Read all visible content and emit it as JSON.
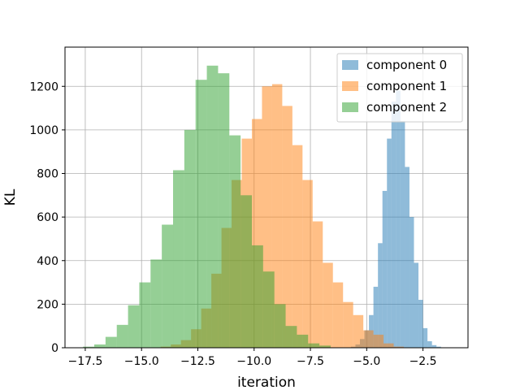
{
  "chart_data": {
    "type": "histogram",
    "xlabel": "iteration",
    "ylabel": "KL",
    "xlim": [
      -18.4,
      -0.5
    ],
    "ylim": [
      0,
      1380
    ],
    "xticks": [
      -17.5,
      -15.0,
      -12.5,
      -10.0,
      -7.5,
      -5.0,
      -2.5
    ],
    "xtick_labels": [
      "−17.5",
      "−15.0",
      "−12.5",
      "−10.0",
      "−7.5",
      "−5.0",
      "−2.5"
    ],
    "yticks": [
      0,
      200,
      400,
      600,
      800,
      1000,
      1200
    ],
    "ytick_labels": [
      "0",
      "200",
      "400",
      "600",
      "800",
      "1000",
      "1200"
    ],
    "grid": true,
    "legend_position": "top-right",
    "series": [
      {
        "name": "component 0",
        "color": "#1f77b4",
        "alpha": 0.5,
        "bin_start": -5.7,
        "bin_width": 0.2,
        "counts": [
          5,
          15,
          40,
          80,
          150,
          280,
          480,
          720,
          960,
          1130,
          1180,
          1040,
          830,
          600,
          390,
          220,
          90,
          30,
          12,
          5
        ]
      },
      {
        "name": "component 1",
        "color": "#ff7f0e",
        "alpha": 0.5,
        "bin_start": -14.15,
        "bin_width": 0.45,
        "counts": [
          5,
          15,
          35,
          85,
          180,
          340,
          550,
          770,
          960,
          1050,
          1200,
          1210,
          1110,
          930,
          770,
          580,
          390,
          300,
          210,
          150,
          80,
          60,
          20,
          5
        ]
      },
      {
        "name": "component 2",
        "color": "#2ca02c",
        "alpha": 0.5,
        "bin_start": -17.6,
        "bin_width": 0.5,
        "counts": [
          5,
          15,
          50,
          105,
          195,
          300,
          405,
          565,
          815,
          1000,
          1230,
          1295,
          1260,
          975,
          700,
          470,
          350,
          200,
          100,
          60,
          20,
          10
        ]
      }
    ]
  }
}
